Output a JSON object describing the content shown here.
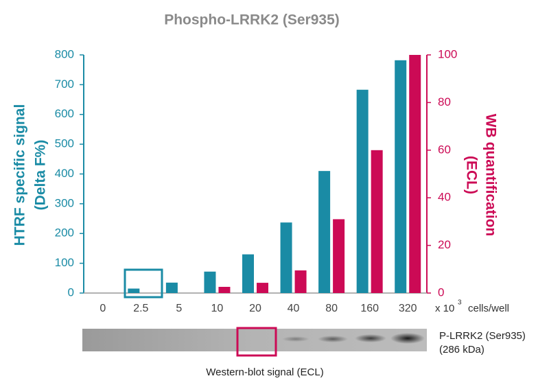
{
  "chart_data": {
    "type": "bar",
    "title": "Phospho-LRRK2 (Ser935)",
    "y_label": [
      "HTRF specific signal",
      "(Delta F%)"
    ],
    "y2_label": [
      "WB quantification",
      "(ECL)"
    ],
    "x_unit": {
      "prefix": "x 10",
      "exponent": "3",
      "suffix": "cells/well"
    },
    "categories": [
      "0",
      "2.5",
      "5",
      "10",
      "20",
      "40",
      "80",
      "160",
      "320"
    ],
    "series": [
      {
        "name": "HTRF specific signal",
        "color": "#1a8ba5",
        "values": [
          0,
          15,
          35,
          72,
          130,
          237,
          410,
          683,
          782
        ]
      },
      {
        "name": "WB quantification",
        "color": "#cc0a55",
        "axis": "y2",
        "values": [
          0,
          0,
          0,
          2.6,
          4.3,
          9.5,
          31,
          60,
          100
        ]
      }
    ],
    "ylim": [
      0,
      800
    ],
    "yticks": [
      0,
      100,
      200,
      300,
      400,
      500,
      600,
      700,
      800
    ],
    "y2lim": [
      0,
      100
    ],
    "y2ticks": [
      0,
      20,
      40,
      60,
      80,
      100
    ],
    "blot_label": [
      "P-LRRK2 (Ser935)",
      "(286 kDa)"
    ],
    "blot_caption": "Western-blot signal (ECL)"
  }
}
